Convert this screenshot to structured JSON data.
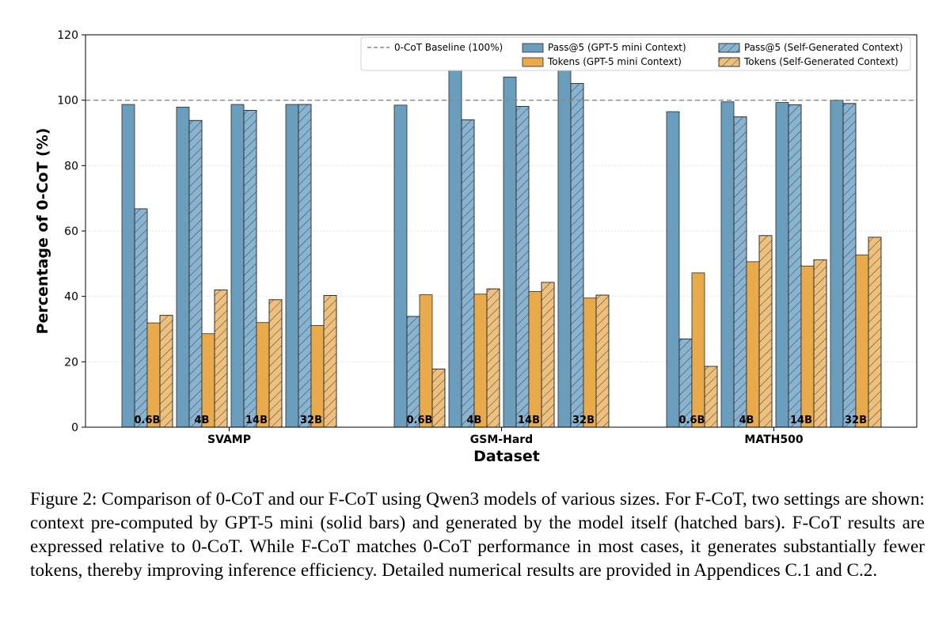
{
  "chart_data": {
    "type": "bar",
    "ylabel": "Percentage of 0-CoT (%)",
    "xlabel": "Dataset",
    "ylim": [
      0,
      120
    ],
    "yticks": [
      "0",
      "20",
      "40",
      "60",
      "80",
      "100",
      "120"
    ],
    "baseline": {
      "label": "0-CoT Baseline (100%)",
      "value": 100
    },
    "grid": true,
    "legend_position": "top-right",
    "datasets": [
      {
        "name": "SVAMP",
        "models": [
          "0.6B",
          "4B",
          "14B",
          "32B"
        ],
        "pass_gpt5": [
          98.7,
          97.9,
          98.7,
          98.7
        ],
        "pass_self": [
          66.8,
          93.8,
          96.9,
          98.7
        ],
        "tokens_gpt5": [
          31.9,
          28.6,
          32.0,
          31.1
        ],
        "tokens_self": [
          34.2,
          42.0,
          39.0,
          40.3
        ]
      },
      {
        "name": "GSM-Hard",
        "models": [
          "0.6B",
          "4B",
          "14B",
          "32B"
        ],
        "pass_gpt5": [
          98.5,
          109.2,
          107.1,
          109.8
        ],
        "pass_self": [
          33.9,
          94.0,
          98.1,
          105.1
        ],
        "tokens_gpt5": [
          40.5,
          40.7,
          41.5,
          39.5
        ],
        "tokens_self": [
          17.8,
          42.3,
          44.3,
          40.4
        ]
      },
      {
        "name": "MATH500",
        "models": [
          "0.6B",
          "4B",
          "14B",
          "32B"
        ],
        "pass_gpt5": [
          96.5,
          99.5,
          99.3,
          100.0
        ],
        "pass_self": [
          27.0,
          94.9,
          98.6,
          99.0
        ],
        "tokens_gpt5": [
          47.2,
          50.6,
          49.3,
          52.7
        ],
        "tokens_self": [
          18.6,
          58.6,
          51.2,
          58.1
        ]
      }
    ],
    "series": [
      {
        "name": "Pass@5 (GPT-5 mini Context)",
        "key": "pass_gpt5",
        "color": "#6b9dbd",
        "hatched": false
      },
      {
        "name": "Pass@5 (Self-Generated Context)",
        "key": "pass_self",
        "color": "#89b3cf",
        "hatched": true
      },
      {
        "name": "Tokens (GPT-5 mini Context)",
        "key": "tokens_gpt5",
        "color": "#e9aa4c",
        "hatched": false
      },
      {
        "name": "Tokens (Self-Generated Context)",
        "key": "tokens_self",
        "color": "#efc07c",
        "hatched": true
      }
    ]
  },
  "caption": {
    "label": "Figure 2: ",
    "text": "Comparison of 0-CoT and our F-CoT using Qwen3 models of various sizes. For F-CoT, two settings are shown: context pre-computed by GPT-5 mini (solid bars) and generated by the model itself (hatched bars). F-CoT results are expressed relative to 0-CoT. While F-CoT matches 0-CoT performance in most cases, it generates substantially fewer tokens, thereby improving inference efficiency. Detailed numerical results are provided in Appendices C.1 and C.2."
  }
}
